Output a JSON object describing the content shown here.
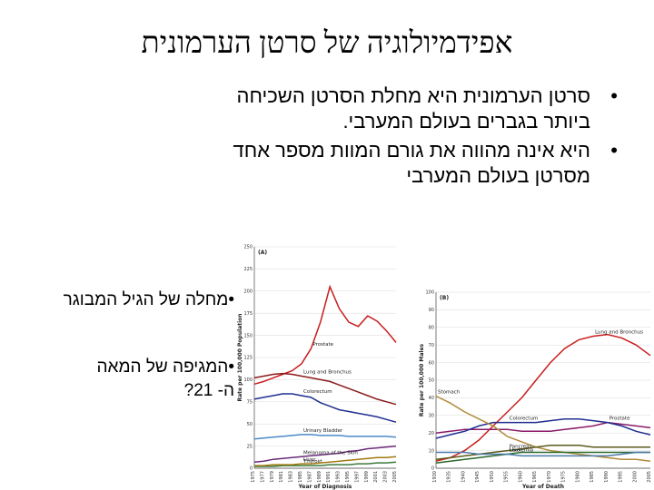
{
  "slide": {
    "title": "אפידמיולוגיה של סרטן הערמונית",
    "bullets": [
      {
        "line1": "סרטן הערמונית היא מחלת הסרטן  השכיחה",
        "line2": "ביותר בגברים בעולם המערבי."
      },
      {
        "line1": "היא אינה מהווה את גורם המוות מספר אחד",
        "line2": "מסרטן בעולם המערבי"
      }
    ],
    "side_bullets": [
      {
        "line1": "מחלה של הגיל המבוגר"
      },
      {
        "line1": "המגיפה של המאה",
        "line2": "ה- 21?"
      }
    ],
    "bullet_symbol": "•"
  },
  "chart_data": [
    {
      "type": "line",
      "panel_label": "(A)",
      "xlabel": "Year of Diagnosis",
      "ylabel": "Rate per 100,000 Population",
      "ylim": [
        0,
        250
      ],
      "yticks": [
        0,
        25,
        50,
        75,
        100,
        125,
        150,
        175,
        200,
        225,
        250
      ],
      "x": [
        1975,
        1977,
        1979,
        1981,
        1983,
        1985,
        1987,
        1989,
        1991,
        1993,
        1995,
        1997,
        1999,
        2001,
        2003,
        2005
      ],
      "series": [
        {
          "name": "Prostate",
          "color": "#c81e1e",
          "values": [
            95,
            98,
            102,
            106,
            110,
            118,
            135,
            165,
            205,
            180,
            165,
            160,
            172,
            166,
            155,
            142
          ]
        },
        {
          "name": "Lung and Bronchus",
          "color": "#8b1a1a",
          "values": [
            102,
            104,
            106,
            107,
            106,
            104,
            102,
            100,
            98,
            94,
            90,
            86,
            82,
            78,
            75,
            72
          ]
        },
        {
          "name": "Colorectum",
          "color": "#1f2f8f",
          "values": [
            78,
            80,
            82,
            84,
            84,
            82,
            80,
            74,
            70,
            66,
            64,
            62,
            60,
            58,
            55,
            52
          ]
        },
        {
          "name": "Urinary Bladder",
          "color": "#4a8ac8",
          "values": [
            33,
            34,
            35,
            36,
            37,
            38,
            38,
            37,
            37,
            37,
            36,
            36,
            36,
            36,
            36,
            35
          ]
        },
        {
          "name": "Melanoma of the Skin",
          "color": "#6a2a7a",
          "values": [
            7,
            8,
            10,
            11,
            12,
            13,
            14,
            15,
            16,
            17,
            19,
            20,
            22,
            23,
            24,
            25
          ]
        },
        {
          "name": "Thyroid",
          "color": "#3a7a3a",
          "values": [
            2,
            2,
            2,
            3,
            3,
            3,
            3,
            3,
            4,
            4,
            4,
            5,
            5,
            6,
            6,
            7
          ]
        },
        {
          "name": "Liver",
          "color": "#a07a10",
          "values": [
            3,
            3,
            4,
            4,
            4,
            5,
            5,
            6,
            7,
            8,
            9,
            10,
            11,
            12,
            12,
            13
          ]
        }
      ],
      "xticks": [
        "1975",
        "1977",
        "1979",
        "1981",
        "1983",
        "1985",
        "1987",
        "1989",
        "1991",
        "1993",
        "1995",
        "1997",
        "1999",
        "2001",
        "2003",
        "2005"
      ]
    },
    {
      "type": "line",
      "panel_label": "(B)",
      "xlabel": "Year of Death",
      "ylabel": "Rate per 100,000 Males",
      "ylim": [
        0,
        100
      ],
      "yticks": [
        0,
        10,
        20,
        30,
        40,
        50,
        60,
        70,
        80,
        90,
        100
      ],
      "x": [
        1930,
        1935,
        1940,
        1945,
        1950,
        1955,
        1960,
        1965,
        1970,
        1975,
        1980,
        1985,
        1990,
        1995,
        2000,
        2005
      ],
      "xticks": [
        "1930",
        "1935",
        "1940",
        "1945",
        "1950",
        "1955",
        "1960",
        "1965",
        "1970",
        "1975",
        "1980",
        "1985",
        "1990",
        "1995",
        "2000",
        "2005"
      ],
      "series": [
        {
          "name": "Lung and Bronchus",
          "color": "#c81e1e",
          "values": [
            4,
            6,
            10,
            16,
            24,
            32,
            40,
            50,
            60,
            68,
            73,
            75,
            76,
            74,
            70,
            64
          ]
        },
        {
          "name": "Prostate",
          "color": "#8b1a6a",
          "values": [
            20,
            21,
            22,
            22,
            22,
            22,
            21,
            21,
            21,
            22,
            23,
            24,
            26,
            25,
            24,
            23
          ]
        },
        {
          "name": "Colorectum",
          "color": "#1f2f8f",
          "values": [
            17,
            19,
            21,
            24,
            26,
            26,
            26,
            26,
            27,
            28,
            28,
            27,
            26,
            24,
            21,
            19
          ]
        },
        {
          "name": "Stomach",
          "color": "#b08a3a",
          "values": [
            41,
            37,
            32,
            28,
            24,
            18,
            15,
            12,
            10,
            9,
            8,
            7,
            6,
            5,
            5,
            4
          ]
        },
        {
          "name": "Pancreas",
          "color": "#5a5a1a",
          "values": [
            5,
            6,
            7,
            8,
            9,
            10,
            11,
            12,
            13,
            13,
            13,
            12,
            12,
            12,
            12,
            12
          ]
        },
        {
          "name": "Leukemia",
          "color": "#2a6a2a",
          "values": [
            3,
            4,
            5,
            6,
            7,
            8,
            9,
            9,
            9,
            9,
            9,
            9,
            9,
            9,
            9,
            9
          ]
        },
        {
          "name": "Liver",
          "color": "#4a7aaa",
          "values": [
            9,
            9,
            9,
            8,
            8,
            8,
            7,
            7,
            7,
            7,
            7,
            7,
            7,
            8,
            9,
            9
          ]
        }
      ]
    }
  ]
}
